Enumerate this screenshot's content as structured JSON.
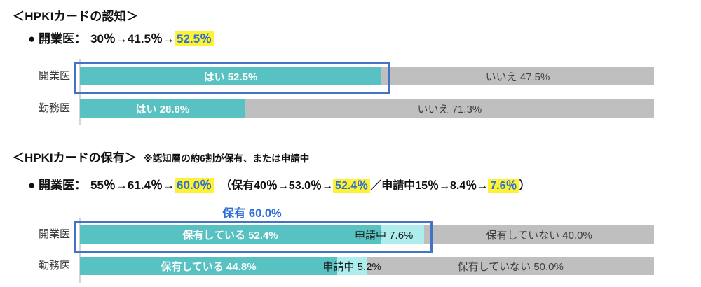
{
  "colors": {
    "teal": "#57C2C1",
    "light_cyan": "#AEEDED",
    "gray_bar": "#BFBFBF",
    "highlight_yellow": "#FFF233",
    "highlight_blue_text": "#2E6FD6",
    "box_border_blue": "#4472C4"
  },
  "section1": {
    "title": "＜HPKIカードの認知＞",
    "bullet": {
      "label": "● 開業医：",
      "sequence": "30％→41.5％→",
      "highlight": "52.5％"
    },
    "chart": {
      "rows": [
        {
          "category": "開業医",
          "yes_label": "はい 52.5%",
          "yes_pct": 52.5,
          "no_label": "いいえ 47.5%",
          "no_pct": 47.5
        },
        {
          "category": "勤務医",
          "yes_label": "はい 28.8%",
          "yes_pct": 28.8,
          "no_label": "いいえ 71.3%",
          "no_pct": 71.3
        }
      ]
    }
  },
  "section2": {
    "title": "＜HPKIカードの保有＞",
    "note": "※認知層の約6割が保有、または申請中",
    "bullet": {
      "label": "● 開業医：",
      "sequence": "55％→61.4％→",
      "highlight1": "60.0％",
      "paren_open": "（保有40％→53.0％→",
      "highlight2": "52.4％",
      "slash_mid": "／申請中15％→8.4％→",
      "highlight3": "7.6％",
      "paren_close": "）"
    },
    "callout": "保有 60.0%",
    "chart": {
      "rows": [
        {
          "category": "開業医",
          "own_label": "保有している 52.4%",
          "own_pct": 52.4,
          "applying_label": "申請中 7.6%",
          "applying_pct": 7.6,
          "not_label": "保有していない 40.0%",
          "not_pct": 40.0
        },
        {
          "category": "勤務医",
          "own_label": "保有している 44.8%",
          "own_pct": 44.8,
          "applying_label": "申請中 5.2%",
          "applying_pct": 5.2,
          "not_label": "保有していない 50.0%",
          "not_pct": 50.0
        }
      ]
    }
  },
  "chart_data": [
    {
      "type": "bar",
      "orientation": "horizontal",
      "stacked": true,
      "title": "＜HPKIカードの認知＞",
      "categories": [
        "開業医",
        "勤務医"
      ],
      "series": [
        {
          "name": "はい",
          "values": [
            52.5,
            28.8
          ],
          "color": "#57C2C1"
        },
        {
          "name": "いいえ",
          "values": [
            47.5,
            71.3
          ],
          "color": "#BFBFBF"
        }
      ],
      "xlim": [
        0,
        100
      ],
      "grid": false,
      "legend": "none",
      "annotations": [
        "開業医の「はい 52.5%」セグメントを青枠で強調"
      ]
    },
    {
      "type": "bar",
      "orientation": "horizontal",
      "stacked": true,
      "title": "＜HPKIカードの保有＞",
      "categories": [
        "開業医",
        "勤務医"
      ],
      "series": [
        {
          "name": "保有している",
          "values": [
            52.4,
            44.8
          ],
          "color": "#57C2C1"
        },
        {
          "name": "申請中",
          "values": [
            7.6,
            5.2
          ],
          "color": "#AEEDED"
        },
        {
          "name": "保有していない",
          "values": [
            40.0,
            50.0
          ],
          "color": "#BFBFBF"
        }
      ],
      "xlim": [
        0,
        100
      ],
      "grid": false,
      "legend": "none",
      "annotations": [
        "保有 60.0%（保有している＋申請中）を青枠で強調"
      ]
    }
  ]
}
